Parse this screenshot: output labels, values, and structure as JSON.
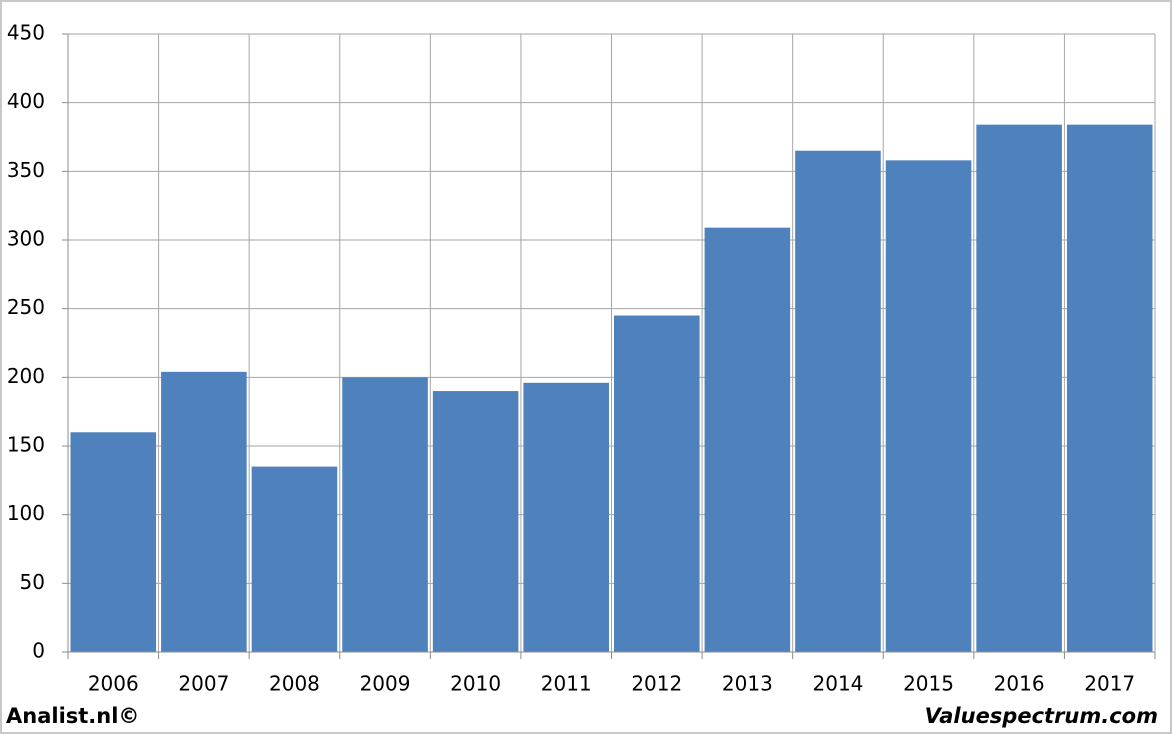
{
  "chart_data": {
    "type": "bar",
    "categories": [
      "2006",
      "2007",
      "2008",
      "2009",
      "2010",
      "2011",
      "2012",
      "2013",
      "2014",
      "2015",
      "2016",
      "2017"
    ],
    "values": [
      160,
      204,
      135,
      200,
      190,
      196,
      245,
      309,
      365,
      358,
      384,
      384
    ],
    "color": "#4f81bd",
    "ylim": [
      0,
      450
    ],
    "yticks": [
      0,
      50,
      100,
      150,
      200,
      250,
      300,
      350,
      400,
      450
    ],
    "grid": true,
    "source_left": "Analist.nl©",
    "source_right": "Valuespectrum.com"
  }
}
